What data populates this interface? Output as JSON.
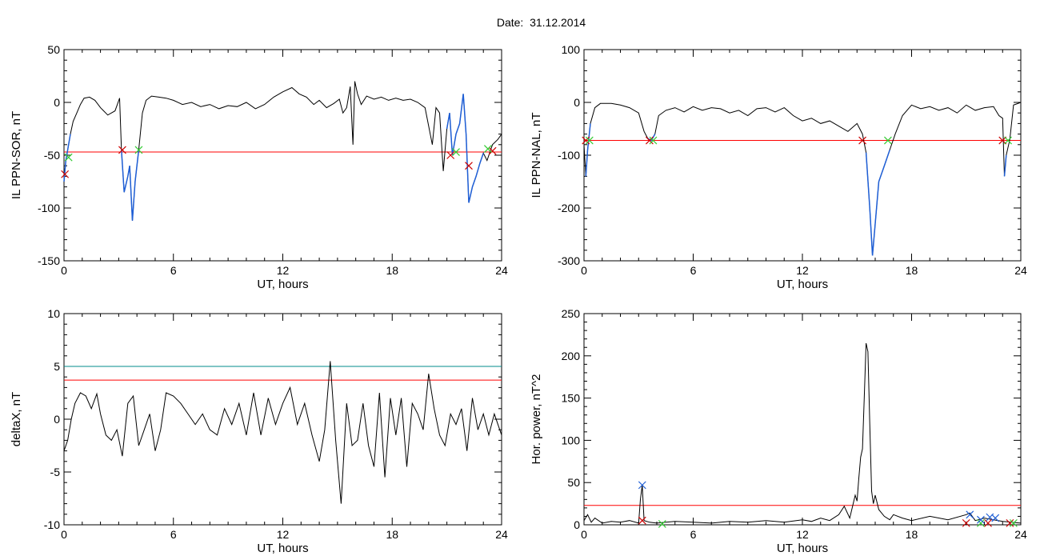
{
  "page": {
    "title": "Date:  31.12.2014"
  },
  "colors": {
    "trace": "#000000",
    "threshold": "#ff0000",
    "threshold2": "#008b8b",
    "highlight": "#1f5fd6",
    "marker_red": "#cc0000",
    "marker_green": "#33cc33",
    "marker_blue": "#1f5fd6"
  },
  "chart_data": [
    {
      "id": "sor",
      "type": "line",
      "title": "",
      "xlabel": "UT, hours",
      "ylabel": "IL PPN-SOR, nT",
      "xlim": [
        0,
        24
      ],
      "ylim": [
        -150,
        50
      ],
      "xticks": [
        0,
        6,
        12,
        18,
        24
      ],
      "yticks": [
        -150,
        -100,
        -50,
        0,
        50
      ],
      "grid": false,
      "series": [
        {
          "x": [
            0,
            0.1,
            0.2,
            0.35,
            0.5,
            0.7,
            0.9,
            1.1,
            1.4,
            1.7,
            2.0,
            2.4,
            2.8,
            3.05,
            3.15,
            3.3,
            3.5,
            3.6,
            3.75,
            3.9,
            4.1,
            4.3,
            4.5,
            4.8,
            5.2,
            5.6,
            6.0,
            6.5,
            7.0,
            7.5,
            8.0,
            8.5,
            9.0,
            9.5,
            10.0,
            10.5,
            11.0,
            11.5,
            12.0,
            12.5,
            12.9,
            13.3,
            13.7,
            14.0,
            14.4,
            14.8,
            15.1,
            15.3,
            15.5,
            15.7,
            15.85,
            15.95,
            16.1,
            16.3,
            16.6,
            17.0,
            17.4,
            17.8,
            18.2,
            18.6,
            19.0,
            19.4,
            19.8,
            20.2,
            20.4,
            20.6,
            20.8,
            21.0,
            21.15,
            21.3,
            21.5,
            21.7,
            21.9,
            22.05,
            22.2,
            22.4,
            22.6,
            22.8,
            23.0,
            23.2,
            23.5,
            23.8,
            24.0
          ],
          "y": [
            -75,
            -55,
            -45,
            -30,
            -18,
            -10,
            -2,
            4,
            5,
            2,
            -5,
            -12,
            -8,
            4,
            -45,
            -85,
            -70,
            -60,
            -112,
            -75,
            -45,
            -10,
            2,
            6,
            5,
            4,
            2,
            -2,
            0,
            -4,
            -2,
            -6,
            -3,
            -4,
            0,
            -6,
            -2,
            5,
            10,
            14,
            8,
            5,
            -2,
            2,
            -5,
            -1,
            3,
            -10,
            -5,
            15,
            -40,
            20,
            8,
            -2,
            6,
            3,
            5,
            2,
            4,
            2,
            3,
            0,
            -5,
            -40,
            -5,
            -10,
            -65,
            -25,
            -10,
            -50,
            -30,
            -20,
            8,
            -30,
            -95,
            -80,
            -70,
            -58,
            -48,
            -55,
            -40,
            -35,
            -30
          ]
        }
      ],
      "threshold": -47,
      "highlight_ranges": [
        [
          0.0,
          0.35
        ],
        [
          3.1,
          4.2
        ],
        [
          21.0,
          23.1
        ]
      ],
      "markers_red": [
        [
          0.05,
          -68
        ],
        [
          3.2,
          -45
        ],
        [
          21.2,
          -50
        ],
        [
          22.2,
          -60
        ],
        [
          23.5,
          -46
        ]
      ],
      "markers_green": [
        [
          0.25,
          -52
        ],
        [
          4.1,
          -45
        ],
        [
          21.5,
          -47
        ],
        [
          23.25,
          -44
        ]
      ]
    },
    {
      "id": "nal",
      "type": "line",
      "title": "",
      "xlabel": "UT, hours",
      "ylabel": "IL PPN-NAL, nT",
      "xlim": [
        0,
        24
      ],
      "ylim": [
        -300,
        100
      ],
      "xticks": [
        0,
        6,
        12,
        18,
        24
      ],
      "yticks": [
        -300,
        -200,
        -100,
        0,
        100
      ],
      "grid": false,
      "series": [
        {
          "x": [
            0,
            0.1,
            0.2,
            0.35,
            0.6,
            0.9,
            1.5,
            2.0,
            2.5,
            3.0,
            3.3,
            3.5,
            3.7,
            3.9,
            4.1,
            4.5,
            5.0,
            5.5,
            6.0,
            6.5,
            7.0,
            7.5,
            8.0,
            8.5,
            9.0,
            9.5,
            10.0,
            10.5,
            11.0,
            11.5,
            12.0,
            12.5,
            13.0,
            13.5,
            14.0,
            14.5,
            15.0,
            15.3,
            15.5,
            15.7,
            15.85,
            16.0,
            16.2,
            16.5,
            16.8,
            17.1,
            17.5,
            18.0,
            18.5,
            19.0,
            19.5,
            20.0,
            20.5,
            21.0,
            21.5,
            22.0,
            22.5,
            22.8,
            23.0,
            23.1,
            23.2,
            23.4,
            23.6,
            24.0
          ],
          "y": [
            -80,
            -140,
            -90,
            -40,
            -10,
            -2,
            -2,
            -5,
            -10,
            -20,
            -55,
            -68,
            -72,
            -60,
            -25,
            -15,
            -10,
            -18,
            -8,
            -15,
            -10,
            -12,
            -20,
            -15,
            -25,
            -12,
            -10,
            -18,
            -10,
            -25,
            -35,
            -30,
            -40,
            -35,
            -45,
            -55,
            -40,
            -60,
            -95,
            -200,
            -290,
            -230,
            -150,
            -120,
            -90,
            -60,
            -25,
            -5,
            -12,
            -8,
            -15,
            -10,
            -20,
            -5,
            -15,
            -10,
            -8,
            -25,
            -30,
            -140,
            -100,
            -70,
            -5,
            0
          ]
        }
      ],
      "threshold": -72,
      "highlight_ranges": [
        [
          0.05,
          0.35
        ],
        [
          3.4,
          3.9
        ],
        [
          15.4,
          16.8
        ],
        [
          23.05,
          23.35
        ]
      ],
      "markers_red": [
        [
          0.1,
          -72
        ],
        [
          3.6,
          -72
        ],
        [
          15.3,
          -72
        ],
        [
          23.0,
          -72
        ]
      ],
      "markers_green": [
        [
          0.3,
          -72
        ],
        [
          3.8,
          -72
        ],
        [
          16.7,
          -72
        ],
        [
          23.3,
          -72
        ]
      ]
    },
    {
      "id": "deltax",
      "type": "line",
      "title": "",
      "xlabel": "UT, hours",
      "ylabel": "deltaX, nT",
      "xlim": [
        0,
        24
      ],
      "ylim": [
        -10,
        10
      ],
      "xticks": [
        0,
        6,
        12,
        18,
        24
      ],
      "yticks": [
        -10,
        -5,
        0,
        5,
        10
      ],
      "grid": false,
      "series": [
        {
          "x": [
            0,
            0.2,
            0.4,
            0.6,
            0.9,
            1.2,
            1.5,
            1.8,
            2.0,
            2.3,
            2.6,
            2.9,
            3.2,
            3.5,
            3.8,
            4.1,
            4.4,
            4.7,
            5.0,
            5.3,
            5.6,
            6.0,
            6.4,
            6.8,
            7.2,
            7.6,
            8.0,
            8.4,
            8.8,
            9.2,
            9.6,
            10.0,
            10.4,
            10.8,
            11.2,
            11.6,
            12.0,
            12.4,
            12.8,
            13.2,
            13.6,
            14.0,
            14.3,
            14.6,
            14.9,
            15.2,
            15.5,
            15.8,
            16.1,
            16.4,
            16.7,
            17.0,
            17.3,
            17.6,
            17.9,
            18.2,
            18.5,
            18.8,
            19.1,
            19.4,
            19.7,
            20.0,
            20.3,
            20.6,
            20.9,
            21.2,
            21.5,
            21.8,
            22.1,
            22.4,
            22.7,
            23.0,
            23.3,
            23.6,
            24.0
          ],
          "y": [
            -3,
            -2,
            0,
            1.5,
            2.5,
            2.2,
            1.0,
            2.4,
            0.5,
            -1.5,
            -2.0,
            -1.0,
            -3.5,
            1.5,
            2.2,
            -2.5,
            -1.0,
            0.5,
            -3.0,
            -1.0,
            2.5,
            2.2,
            1.5,
            0.5,
            -0.5,
            0.5,
            -1.0,
            -1.5,
            1.0,
            -0.5,
            1.5,
            -1.5,
            2.5,
            -1.5,
            2.0,
            -0.5,
            1.5,
            3.0,
            -0.5,
            1.5,
            -1.5,
            -4.0,
            -1.0,
            5.5,
            -2.0,
            -8.0,
            1.5,
            -2.5,
            -2.0,
            1.5,
            -2.5,
            -4.5,
            2.5,
            -5.5,
            2.0,
            -1.5,
            2.0,
            -4.5,
            1.5,
            0.5,
            -1.0,
            4.3,
            1.0,
            -1.5,
            -2.5,
            0.5,
            -0.5,
            1.0,
            -3.0,
            2.0,
            -1.0,
            0.5,
            -1.5,
            0.5,
            -1.5
          ]
        }
      ],
      "threshold": 3.7,
      "threshold2": 5.0
    },
    {
      "id": "hpower",
      "type": "line",
      "title": "",
      "xlabel": "UT, hours",
      "ylabel": "Hor. power, nT^2",
      "xlim": [
        0,
        24
      ],
      "ylim": [
        0,
        250
      ],
      "xticks": [
        0,
        6,
        12,
        18,
        24
      ],
      "yticks": [
        0,
        50,
        100,
        150,
        200,
        250
      ],
      "grid": false,
      "series": [
        {
          "x": [
            0,
            0.2,
            0.4,
            0.6,
            1.0,
            1.5,
            2.0,
            2.5,
            3.0,
            3.1,
            3.2,
            3.3,
            3.6,
            4.0,
            4.5,
            5.0,
            6.0,
            7.0,
            8.0,
            9.0,
            10.0,
            11.0,
            12.0,
            12.5,
            13.0,
            13.5,
            14.0,
            14.3,
            14.6,
            14.9,
            15.0,
            15.1,
            15.2,
            15.3,
            15.4,
            15.5,
            15.6,
            15.7,
            15.8,
            15.9,
            16.0,
            16.2,
            16.5,
            16.8,
            17.0,
            17.5,
            18.0,
            19.0,
            20.0,
            21.0,
            21.2,
            21.5,
            22.0,
            22.5,
            23.0,
            23.5,
            24.0
          ],
          "y": [
            5,
            12,
            3,
            8,
            2,
            4,
            3,
            5,
            2,
            30,
            47,
            5,
            3,
            2,
            3,
            4,
            3,
            2,
            4,
            3,
            5,
            3,
            6,
            4,
            8,
            5,
            12,
            22,
            8,
            35,
            28,
            55,
            80,
            90,
            150,
            215,
            205,
            120,
            40,
            25,
            35,
            18,
            10,
            6,
            12,
            8,
            5,
            10,
            6,
            12,
            14,
            5,
            8,
            6,
            4,
            3,
            2
          ]
        }
      ],
      "threshold": 23,
      "markers_red": [
        [
          3.2,
          5
        ],
        [
          21.0,
          2
        ],
        [
          22.2,
          2
        ],
        [
          23.4,
          2
        ]
      ],
      "markers_green": [
        [
          4.3,
          1
        ],
        [
          21.8,
          2
        ],
        [
          23.6,
          2
        ]
      ],
      "markers_blue": [
        [
          3.2,
          47
        ],
        [
          21.2,
          12
        ],
        [
          21.8,
          6
        ],
        [
          22.3,
          9
        ],
        [
          22.6,
          8
        ]
      ]
    }
  ]
}
